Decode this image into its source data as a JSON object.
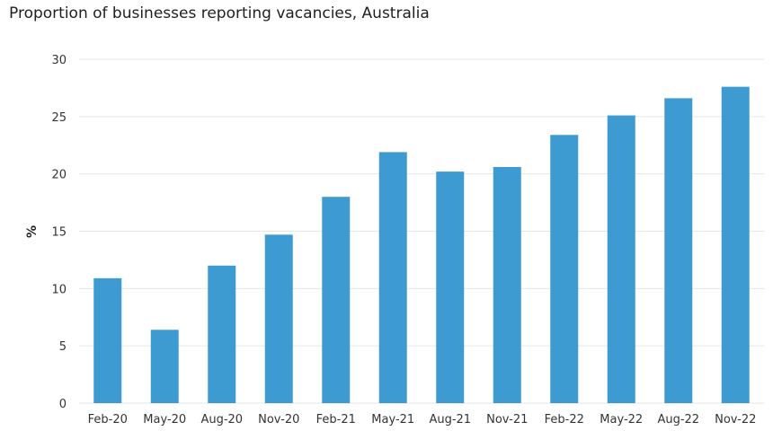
{
  "chart_data": {
    "type": "bar",
    "title": "Proportion of businesses reporting vacancies, Australia",
    "xlabel": "",
    "ylabel": "%",
    "categories": [
      "Feb-20",
      "May-20",
      "Aug-20",
      "Nov-20",
      "Feb-21",
      "May-21",
      "Aug-21",
      "Nov-21",
      "Feb-22",
      "May-22",
      "Aug-22",
      "Nov-22"
    ],
    "values": [
      10.9,
      6.4,
      12.0,
      14.7,
      18.0,
      21.9,
      20.2,
      20.6,
      23.4,
      25.1,
      26.6,
      27.6
    ],
    "ylim": [
      0,
      30
    ],
    "yticks": [
      "0",
      "5",
      "10",
      "15",
      "20",
      "25",
      "30"
    ],
    "grid": true,
    "legend": "none",
    "bar_color": "#3e9bd1",
    "grid_color": "#e6e6e6"
  }
}
